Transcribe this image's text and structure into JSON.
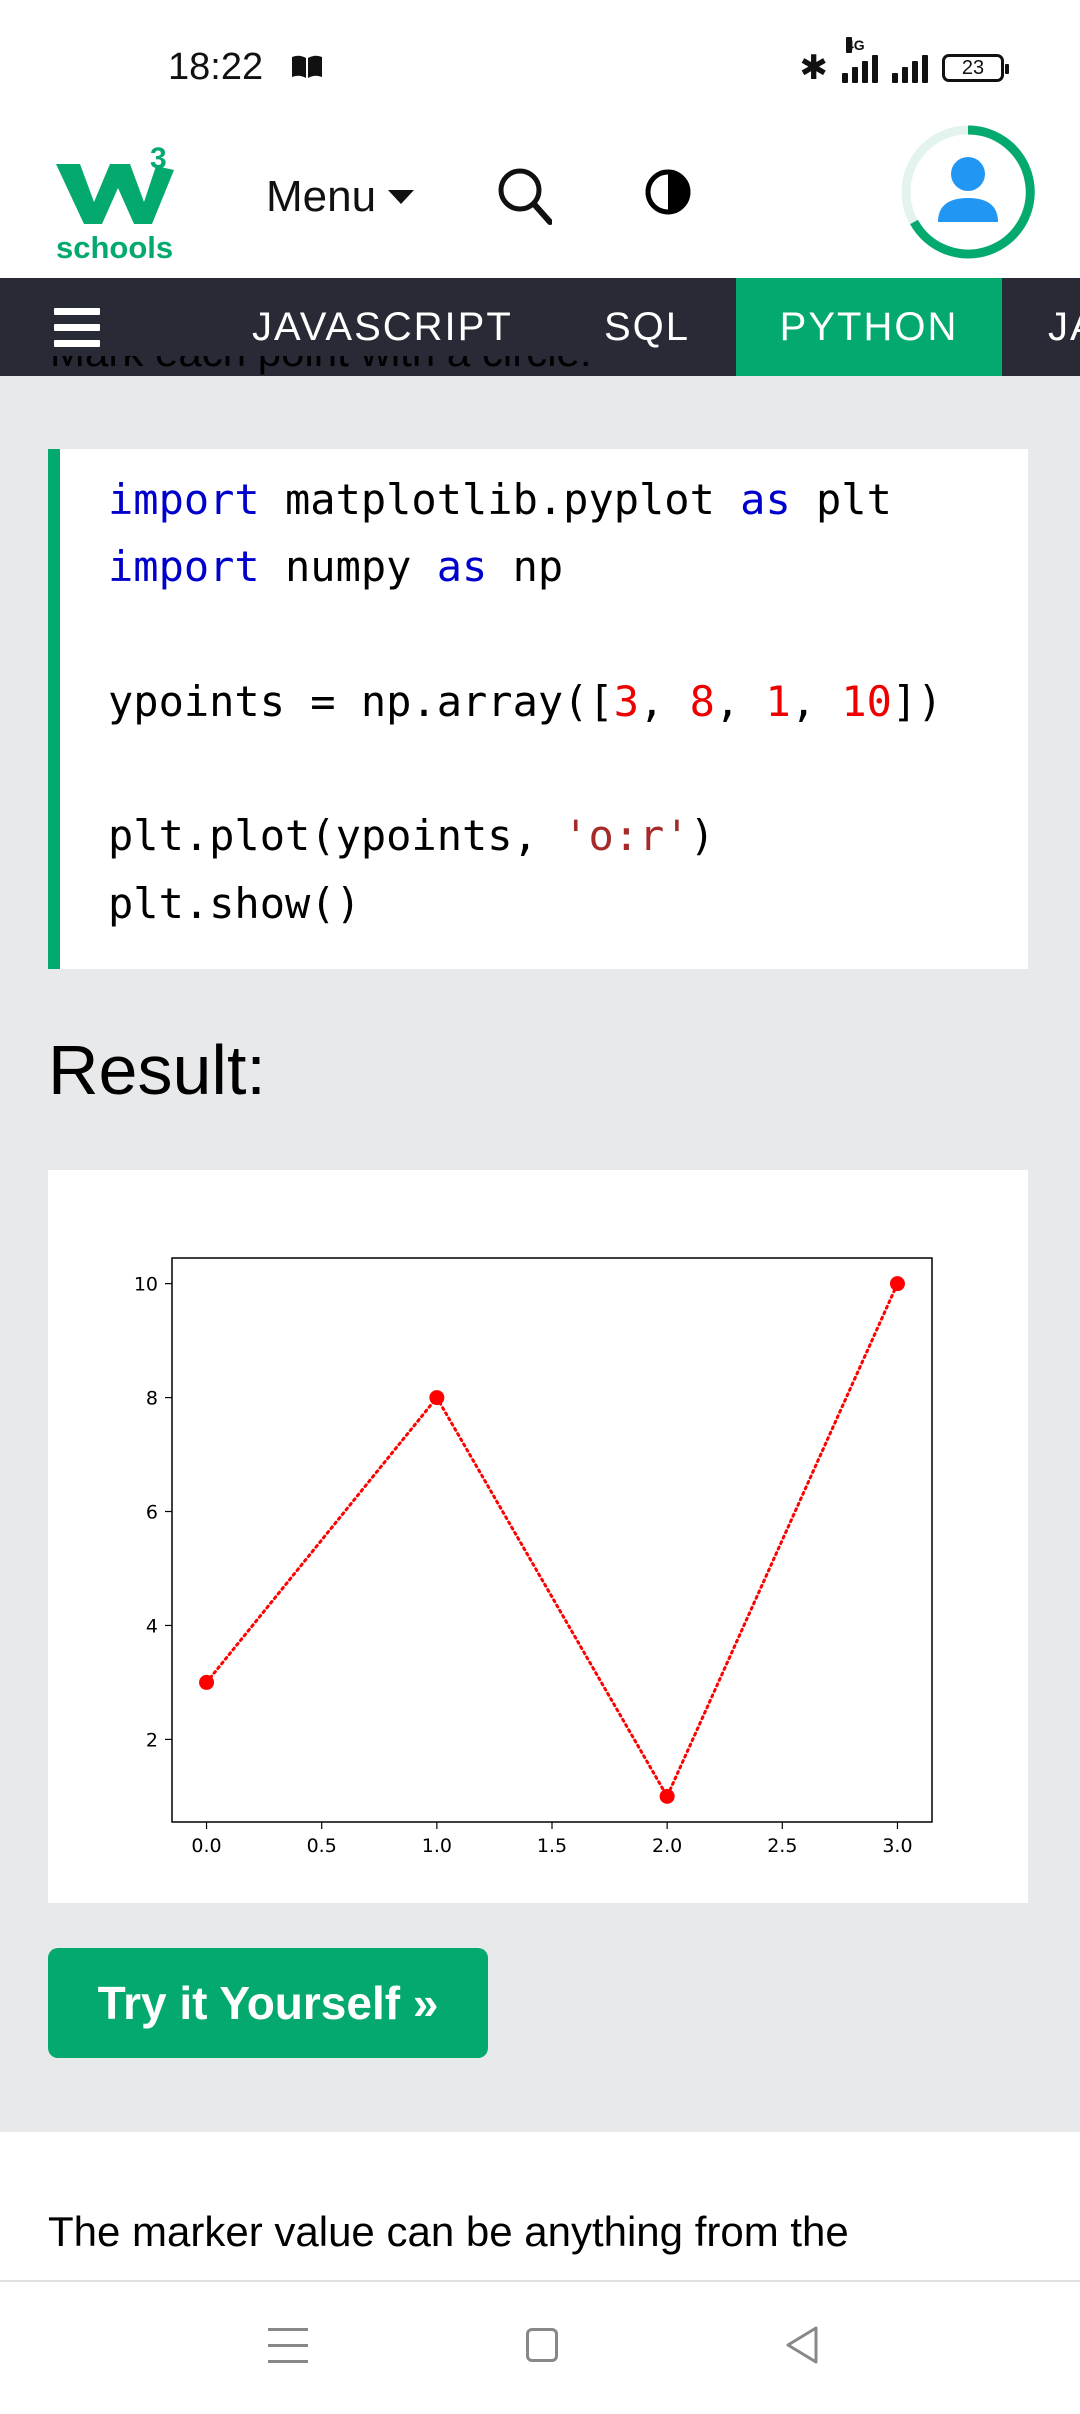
{
  "status_bar": {
    "time": "18:22",
    "network_label": "4G",
    "battery": "23"
  },
  "header": {
    "logo_text": "schools",
    "logo_superscript": "3",
    "menu_label": "Menu"
  },
  "nav": {
    "items": [
      {
        "label": "JAVASCRIPT"
      },
      {
        "label": "SQL"
      },
      {
        "label": "PYTHON",
        "active": true
      },
      {
        "label": "JA"
      }
    ]
  },
  "content": {
    "cut_line": "Mark each point with a circle:",
    "code": {
      "line1": {
        "kw1": "import",
        "mid": " matplotlib.pyplot ",
        "kw2": "as",
        "end": " plt"
      },
      "line2": {
        "kw1": "import",
        "mid": " numpy ",
        "kw2": "as",
        "end": " np"
      },
      "line3": {
        "a": "ypoints = np.array([",
        "n1": "3",
        "c1": ", ",
        "n2": "8",
        "c2": ", ",
        "n3": "1",
        "c3": ", ",
        "n4": "10",
        "b": "])"
      },
      "line4": {
        "a": "plt.plot(ypoints, ",
        "s": "'o:r'",
        "b": ")"
      },
      "line5": "plt.show()"
    },
    "result_heading": "Result:",
    "try_button": "Try it Yourself »",
    "bottom_text": "The marker value can be anything from the"
  },
  "chart_data": {
    "type": "line",
    "x": [
      0,
      1,
      2,
      3
    ],
    "series": [
      {
        "values": [
          3,
          8,
          1,
          10
        ],
        "color": "#ff0000",
        "linestyle": "dotted",
        "marker": "circle"
      }
    ],
    "xticks": [
      "0.0",
      "0.5",
      "1.0",
      "1.5",
      "2.0",
      "2.5",
      "3.0"
    ],
    "yticks": [
      "2",
      "4",
      "6",
      "8",
      "10"
    ],
    "xlim": [
      -0.15,
      3.15
    ],
    "ylim": [
      0.55,
      10.45
    ],
    "grid": false,
    "title": "",
    "xlabel": "",
    "ylabel": ""
  },
  "colors": {
    "brand": "#04aa6d",
    "nav_bg": "#282a35",
    "page_bg": "#e7e9eb"
  }
}
